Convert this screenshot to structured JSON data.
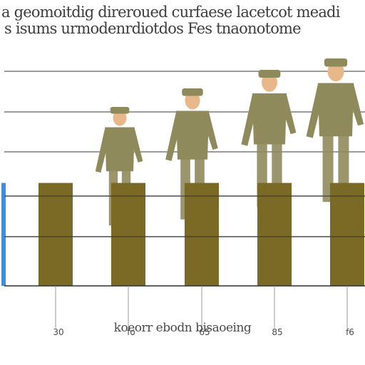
{
  "chart_data": {
    "type": "bar",
    "title_lines": [
      "a geomoitdig direroued curfaese lacetcot meadi",
      "s isums urmodenrdiotdos Fes tnaonotome"
    ],
    "xlabel": "koeorr ebodn bisaoeing",
    "categories": [
      "30",
      "fo",
      "65",
      "85",
      "f6"
    ],
    "values": [
      1,
      1,
      1,
      1,
      1
    ],
    "ylim": [
      0,
      2.5
    ],
    "grid": true,
    "legend": "none"
  },
  "colors": {
    "bar": "#7b6a25",
    "accent_bar": "#3a8fe0",
    "gridline": "#2e2e2e",
    "tickline": "#9a9a9a",
    "figure_camo": "#8f8a5c",
    "figure_skin": "#e8b88a"
  },
  "decorations": {
    "figures": [
      "soldier-figure",
      "soldier-figure",
      "soldier-figure",
      "soldier-figure"
    ]
  }
}
